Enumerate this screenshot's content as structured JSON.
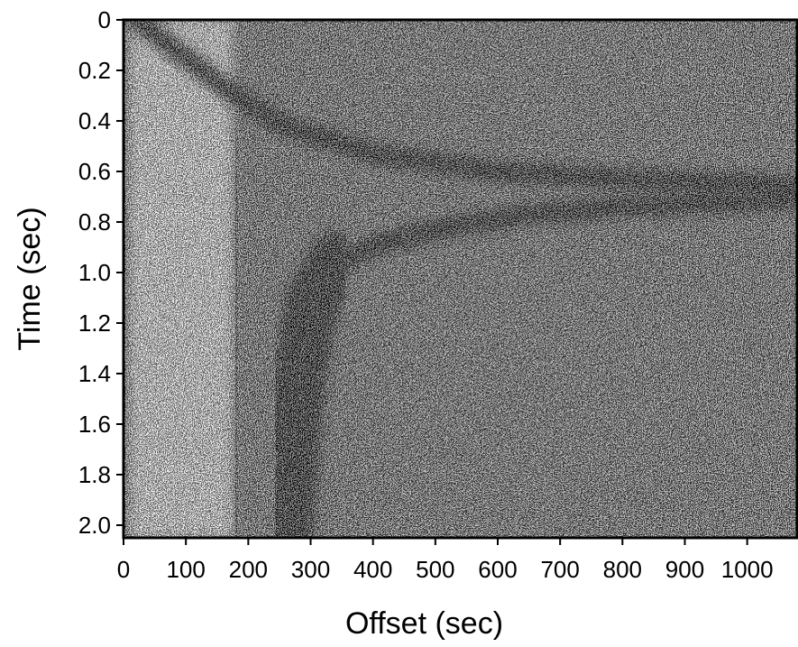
{
  "chart_data": {
    "type": "heatmap",
    "title": "",
    "xlabel": "Offset (sec)",
    "ylabel": "Time (sec)",
    "xlim": [
      0,
      1080
    ],
    "ylim": [
      0,
      2.05
    ],
    "y_inverted": true,
    "x_ticks": [
      0,
      100,
      200,
      300,
      400,
      500,
      600,
      700,
      800,
      900,
      1000
    ],
    "x_tick_labels": [
      "0",
      "100",
      "200",
      "300",
      "400",
      "500",
      "600",
      "700",
      "800",
      "900",
      "1000"
    ],
    "y_ticks": [
      0,
      0.2,
      0.4,
      0.6,
      0.8,
      1.0,
      1.2,
      1.4,
      1.6,
      1.8,
      2.0
    ],
    "y_tick_labels": [
      "0",
      "0.2",
      "0.4",
      "0.6",
      "0.8",
      "1.0",
      "1.2",
      "1.4",
      "1.6",
      "1.8",
      "2.0"
    ],
    "colormap": "grayscale-dithered",
    "grid": false,
    "features": [
      {
        "kind": "line",
        "shade": "dark",
        "points": [
          [
            20,
            0.0
          ],
          [
            100,
            0.15
          ],
          [
            180,
            0.3
          ],
          [
            260,
            0.42
          ],
          [
            400,
            0.53
          ],
          [
            600,
            0.6
          ],
          [
            800,
            0.63
          ],
          [
            1000,
            0.65
          ],
          [
            1080,
            0.66
          ]
        ]
      },
      {
        "kind": "line",
        "shade": "dark",
        "points": [
          [
            300,
            1.1
          ],
          [
            350,
            0.95
          ],
          [
            420,
            0.88
          ],
          [
            520,
            0.82
          ],
          [
            650,
            0.77
          ],
          [
            800,
            0.74
          ],
          [
            1000,
            0.72
          ],
          [
            1080,
            0.71
          ]
        ]
      },
      {
        "kind": "line",
        "shade": "dark",
        "points": [
          [
            260,
            2.05
          ],
          [
            270,
            1.7
          ],
          [
            285,
            1.35
          ],
          [
            305,
            1.1
          ],
          [
            340,
            0.95
          ]
        ]
      },
      {
        "kind": "line",
        "shade": "dark",
        "points": [
          [
            180,
            0.45
          ],
          [
            182,
            2.05
          ]
        ]
      },
      {
        "kind": "line",
        "shade": "dark",
        "points": [
          [
            15,
            0.0
          ],
          [
            15,
            2.05
          ]
        ]
      }
    ]
  }
}
